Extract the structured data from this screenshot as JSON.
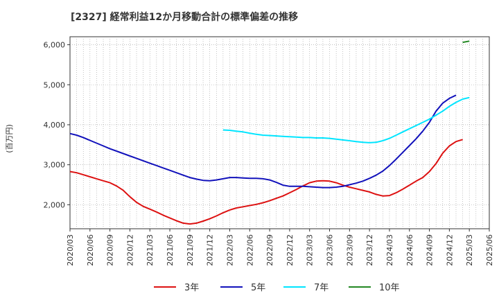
{
  "chart_data": {
    "type": "line",
    "title": "[2327]  経常利益12か月移動合計の標準偏差の推移",
    "ylabel": "(百万円)",
    "xlabel": "",
    "x_tick_labels": [
      "2020/03",
      "2020/06",
      "2020/09",
      "2020/12",
      "2021/03",
      "2021/06",
      "2021/09",
      "2021/12",
      "2022/03",
      "2022/06",
      "2022/09",
      "2022/12",
      "2023/03",
      "2023/06",
      "2023/09",
      "2023/12",
      "2024/03",
      "2024/06",
      "2024/09",
      "2024/12",
      "2025/03",
      "2025/06"
    ],
    "y_ticks": [
      2000,
      3000,
      4000,
      5000,
      6000
    ],
    "y_tick_labels": [
      "2,000",
      "3,000",
      "4,000",
      "5,000",
      "6,000"
    ],
    "ylim": [
      1400,
      6200
    ],
    "grid": true,
    "legend_position": "bottom",
    "series": [
      {
        "name": "3年",
        "color": "#dd1111",
        "start_index": 0,
        "values": [
          2830,
          2800,
          2750,
          2700,
          2650,
          2600,
          2550,
          2470,
          2360,
          2200,
          2060,
          1960,
          1890,
          1820,
          1740,
          1670,
          1600,
          1540,
          1520,
          1540,
          1590,
          1650,
          1720,
          1800,
          1870,
          1920,
          1950,
          1980,
          2010,
          2050,
          2100,
          2160,
          2220,
          2300,
          2380,
          2470,
          2550,
          2590,
          2600,
          2590,
          2550,
          2490,
          2440,
          2400,
          2360,
          2320,
          2260,
          2220,
          2230,
          2300,
          2390,
          2490,
          2590,
          2680,
          2830,
          3030,
          3290,
          3470,
          3580,
          3630
        ]
      },
      {
        "name": "5年",
        "color": "#1111bb",
        "start_index": 0,
        "values": [
          3780,
          3740,
          3680,
          3610,
          3540,
          3470,
          3400,
          3340,
          3280,
          3220,
          3160,
          3100,
          3040,
          2980,
          2920,
          2860,
          2800,
          2740,
          2680,
          2640,
          2610,
          2600,
          2620,
          2650,
          2680,
          2680,
          2670,
          2660,
          2660,
          2650,
          2620,
          2560,
          2490,
          2460,
          2460,
          2460,
          2450,
          2440,
          2430,
          2430,
          2440,
          2460,
          2500,
          2540,
          2590,
          2660,
          2740,
          2840,
          2980,
          3140,
          3310,
          3480,
          3650,
          3840,
          4060,
          4340,
          4540,
          4660,
          4740
        ]
      },
      {
        "name": "7年",
        "color": "#00e5ff",
        "start_index": 23,
        "values": [
          3870,
          3860,
          3840,
          3820,
          3790,
          3760,
          3740,
          3730,
          3720,
          3710,
          3700,
          3690,
          3680,
          3680,
          3670,
          3670,
          3660,
          3640,
          3620,
          3600,
          3580,
          3560,
          3550,
          3560,
          3600,
          3660,
          3740,
          3820,
          3900,
          3980,
          4060,
          4140,
          4240,
          4340,
          4460,
          4560,
          4640,
          4680
        ]
      },
      {
        "name": "10年",
        "color": "#228822",
        "start_index": 59,
        "values": [
          6060,
          6090
        ]
      }
    ]
  }
}
